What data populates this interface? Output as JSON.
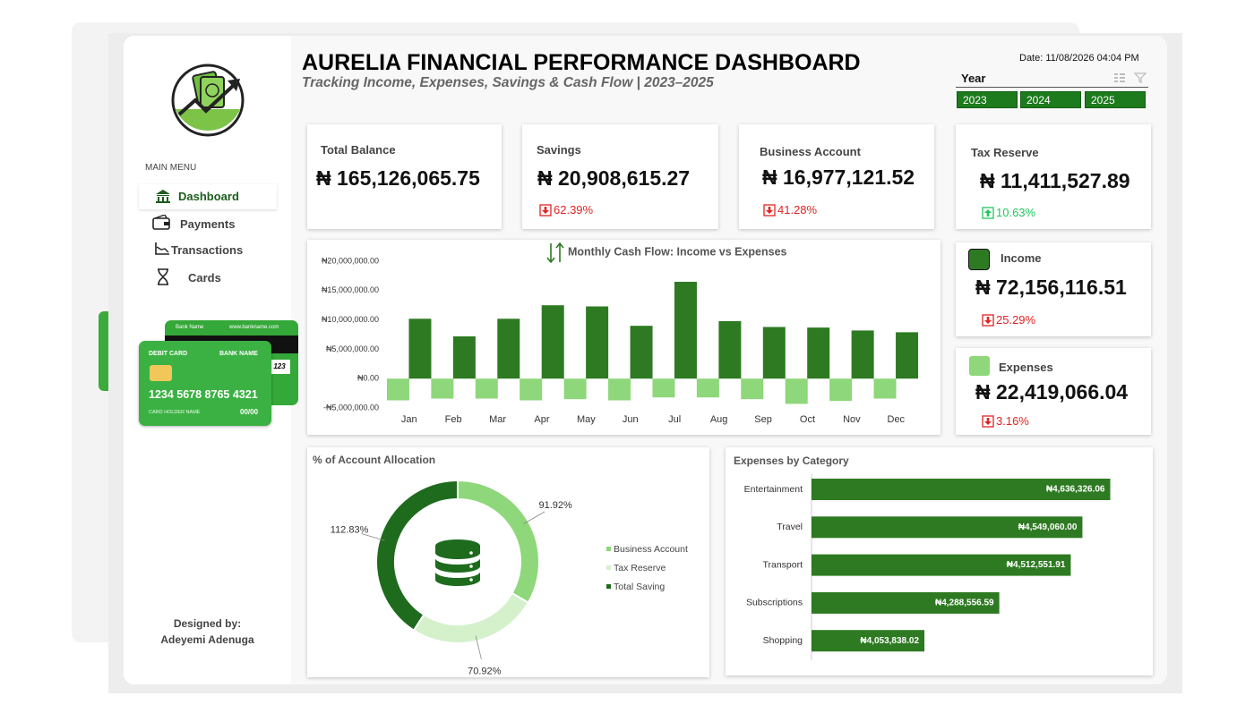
{
  "header": {
    "title": "AURELIA FINANCIAL PERFORMANCE DASHBOARD",
    "subtitle": "Tracking Income, Expenses, Savings & Cash Flow | 2023–2025",
    "date": "Date: 11/08/2026 04:04 PM"
  },
  "slicer": {
    "title": "Year",
    "items": [
      "2023",
      "2024",
      "2025"
    ]
  },
  "sidebar": {
    "menu_title": "MAIN MENU",
    "menu": [
      "Dashboard",
      "Payments",
      "Transactions",
      "Cards"
    ],
    "designer_label": "Designed by:",
    "designer": "Adeyemi Adenuga"
  },
  "card_graphic": {
    "back_bank": "Bank Name",
    "back_url": "www.bankname.com",
    "back_cvv": "123",
    "type": "DEBIT CARD",
    "bank": "BANK NAME",
    "number": "1234 5678 8765 4321",
    "holder": "CARD HOLDER NAME",
    "expiry": "00/00"
  },
  "kpis": [
    {
      "label": "Total Balance",
      "value": "₦ 165,126,065.75"
    },
    {
      "label": "Savings",
      "value": "₦ 20,908,615.27",
      "change": "62.39%",
      "direction": "down"
    },
    {
      "label": "Business Account",
      "value": "₦ 16,977,121.52",
      "change": "41.28%",
      "direction": "down"
    },
    {
      "label": "Tax Reserve",
      "value": "₦ 11,411,527.89",
      "change": "10.63%",
      "direction": "up"
    },
    {
      "value": "₦ 72,156,116.51",
      "change": "25.29%",
      "direction": "down"
    },
    {
      "value": "₦ 22,419,066.04",
      "change": "3.16%",
      "direction": "down"
    }
  ],
  "chart_data": [
    {
      "type": "bar",
      "title": "Monthly Cash Flow: Income vs Expenses",
      "categories": [
        "Jan",
        "Feb",
        "Mar",
        "Apr",
        "May",
        "Jun",
        "Jul",
        "Aug",
        "Sep",
        "Oct",
        "Nov",
        "Dec"
      ],
      "series": [
        {
          "name": "Income",
          "color": "#2e7a22",
          "values": [
            10200000,
            7200000,
            10200000,
            12500000,
            12300000,
            9000000,
            16500000,
            9800000,
            8800000,
            8700000,
            8200000,
            7900000
          ]
        },
        {
          "name": "Expenses",
          "color": "#8ed77a",
          "values": [
            -3700000,
            -3400000,
            -3400000,
            -3700000,
            -3500000,
            -3700000,
            -3200000,
            -3200000,
            -3500000,
            -4300000,
            -3800000,
            -3400000
          ]
        }
      ],
      "ylim": [
        -5000000,
        20000000
      ],
      "yticks": [
        {
          "value": -5000000,
          "label": "-₦5,000,000.00"
        },
        {
          "value": 0,
          "label": "₦0.00"
        },
        {
          "value": 5000000,
          "label": "₦5,000,000.00"
        },
        {
          "value": 10000000,
          "label": "₦10,000,000.00"
        },
        {
          "value": 15000000,
          "label": "₦15,000,000.00"
        },
        {
          "value": 20000000,
          "label": "₦20,000,000.00"
        }
      ],
      "grid": false
    },
    {
      "type": "donut",
      "title": "% of Account Allocation",
      "categories": [
        "Business Account",
        "Tax Reserve",
        "Total Saving"
      ],
      "values": [
        91.92,
        70.92,
        112.83
      ],
      "value_labels": [
        "91.92%",
        "70.92%",
        "112.83%"
      ],
      "colors": [
        "#8ed77a",
        "#d4f1cb",
        "#1e6b1e"
      ],
      "legend": "right"
    },
    {
      "type": "barh",
      "title": "Expenses by Category",
      "categories": [
        "Entertainment",
        "Travel",
        "Transport",
        "Subscriptions",
        "Shopping"
      ],
      "values": [
        4636326.06,
        4549060.0,
        4512551.91,
        4288556.59,
        4053838.02
      ],
      "value_labels": [
        "₦4,636,326.06",
        "₦4,549,060.00",
        "₦4,512,551.91",
        "₦4,288,556.59",
        "₦4,053,838.02"
      ],
      "color": "#2e7a22",
      "xlim": [
        3700000,
        4750000
      ]
    }
  ]
}
